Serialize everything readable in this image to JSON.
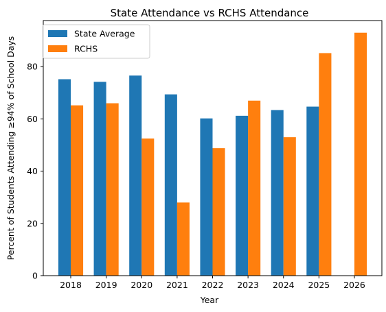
{
  "chart_data": {
    "type": "bar",
    "title": "State Attendance vs RCHS Attendance",
    "xlabel": "Year",
    "ylabel": "Percent of Students Attending ≥94% of School Days",
    "categories": [
      "2018",
      "2019",
      "2020",
      "2021",
      "2022",
      "2023",
      "2024",
      "2025",
      "2026"
    ],
    "series": [
      {
        "name": "State Average",
        "color": "#1f77b4",
        "values": [
          75.2,
          74.2,
          76.6,
          69.4,
          60.2,
          61.2,
          63.4,
          64.7,
          null
        ]
      },
      {
        "name": "RCHS",
        "color": "#ff7f0e",
        "values": [
          65.2,
          66.0,
          52.5,
          28.0,
          48.8,
          67.0,
          53.0,
          85.2,
          93.0
        ]
      }
    ],
    "ylim": [
      0,
      97.65
    ],
    "yticks": [
      0,
      20,
      40,
      60,
      80
    ],
    "grid": false,
    "legend_position": "top-left"
  }
}
